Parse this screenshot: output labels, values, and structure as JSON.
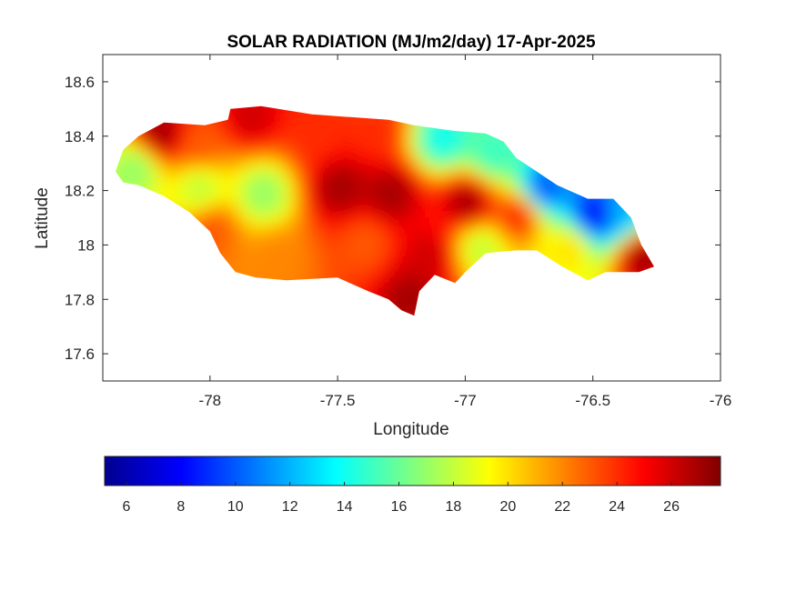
{
  "chart_data": {
    "type": "heatmap",
    "title": "SOLAR RADIATION (MJ/m2/day) 17-Apr-2025",
    "xlabel": "Longitude",
    "ylabel": "Latitude",
    "xlim": [
      -78.42,
      -76
    ],
    "ylim": [
      17.5,
      18.7
    ],
    "xticks": [
      -78,
      -77.5,
      -77,
      -76.5,
      -76
    ],
    "xtick_labels": [
      "-78",
      "-77.5",
      "-77",
      "-76.5",
      "-76"
    ],
    "yticks": [
      17.6,
      17.8,
      18,
      18.2,
      18.4,
      18.6
    ],
    "ytick_labels": [
      "17.6",
      "17.8",
      "18",
      "18.2",
      "18.4",
      "18.6"
    ],
    "grid": false,
    "colormap": "jet",
    "colorbar": {
      "orientation": "horizontal",
      "placement": "bottom",
      "range": [
        5.2,
        27.8
      ],
      "ticks": [
        6,
        8,
        10,
        12,
        14,
        16,
        18,
        20,
        22,
        24,
        26
      ],
      "tick_labels": [
        "6",
        "8",
        "10",
        "12",
        "14",
        "16",
        "18",
        "20",
        "22",
        "24",
        "26"
      ]
    },
    "region_outline": [
      [
        -78.37,
        18.27
      ],
      [
        -78.34,
        18.35
      ],
      [
        -78.28,
        18.4
      ],
      [
        -78.18,
        18.45
      ],
      [
        -78.02,
        18.44
      ],
      [
        -77.93,
        18.46
      ],
      [
        -77.92,
        18.5
      ],
      [
        -77.8,
        18.51
      ],
      [
        -77.6,
        18.48
      ],
      [
        -77.45,
        18.47
      ],
      [
        -77.3,
        18.46
      ],
      [
        -77.2,
        18.44
      ],
      [
        -77.05,
        18.42
      ],
      [
        -76.92,
        18.41
      ],
      [
        -76.85,
        18.38
      ],
      [
        -76.8,
        18.32
      ],
      [
        -76.72,
        18.27
      ],
      [
        -76.64,
        18.22
      ],
      [
        -76.52,
        18.17
      ],
      [
        -76.42,
        18.17
      ],
      [
        -76.35,
        18.1
      ],
      [
        -76.31,
        18.0
      ],
      [
        -76.26,
        17.92
      ],
      [
        -76.32,
        17.9
      ],
      [
        -76.45,
        17.9
      ],
      [
        -76.52,
        17.87
      ],
      [
        -76.62,
        17.92
      ],
      [
        -76.72,
        17.98
      ],
      [
        -76.8,
        17.98
      ],
      [
        -76.92,
        17.97
      ],
      [
        -77.0,
        17.9
      ],
      [
        -77.04,
        17.86
      ],
      [
        -77.12,
        17.89
      ],
      [
        -77.18,
        17.83
      ],
      [
        -77.2,
        17.74
      ],
      [
        -77.25,
        17.76
      ],
      [
        -77.3,
        17.8
      ],
      [
        -77.38,
        17.83
      ],
      [
        -77.5,
        17.88
      ],
      [
        -77.7,
        17.87
      ],
      [
        -77.82,
        17.88
      ],
      [
        -77.9,
        17.9
      ],
      [
        -77.96,
        17.97
      ],
      [
        -78.0,
        18.05
      ],
      [
        -78.08,
        18.12
      ],
      [
        -78.18,
        18.18
      ],
      [
        -78.28,
        18.22
      ],
      [
        -78.34,
        18.23
      ]
    ],
    "field_samples": [
      {
        "lon": -78.2,
        "lat": 18.4,
        "value": 27
      },
      {
        "lon": -78.05,
        "lat": 18.36,
        "value": 23
      },
      {
        "lon": -77.85,
        "lat": 18.46,
        "value": 26
      },
      {
        "lon": -77.6,
        "lat": 18.4,
        "value": 24
      },
      {
        "lon": -77.35,
        "lat": 18.42,
        "value": 24
      },
      {
        "lon": -77.1,
        "lat": 18.38,
        "value": 14
      },
      {
        "lon": -76.9,
        "lat": 18.33,
        "value": 15
      },
      {
        "lon": -76.7,
        "lat": 18.2,
        "value": 10
      },
      {
        "lon": -76.5,
        "lat": 18.1,
        "value": 8
      },
      {
        "lon": -76.4,
        "lat": 18.1,
        "value": 12
      },
      {
        "lon": -76.32,
        "lat": 17.95,
        "value": 27
      },
      {
        "lon": -78.3,
        "lat": 18.27,
        "value": 17
      },
      {
        "lon": -78.05,
        "lat": 18.2,
        "value": 18
      },
      {
        "lon": -77.8,
        "lat": 18.18,
        "value": 17
      },
      {
        "lon": -77.5,
        "lat": 18.2,
        "value": 27
      },
      {
        "lon": -77.3,
        "lat": 18.18,
        "value": 27
      },
      {
        "lon": -77.0,
        "lat": 18.15,
        "value": 27
      },
      {
        "lon": -76.8,
        "lat": 18.1,
        "value": 24
      },
      {
        "lon": -76.6,
        "lat": 17.98,
        "value": 20
      },
      {
        "lon": -78.0,
        "lat": 18.05,
        "value": 23
      },
      {
        "lon": -77.75,
        "lat": 17.95,
        "value": 22
      },
      {
        "lon": -77.4,
        "lat": 18.0,
        "value": 23
      },
      {
        "lon": -77.15,
        "lat": 17.95,
        "value": 26
      },
      {
        "lon": -76.95,
        "lat": 17.98,
        "value": 18
      },
      {
        "lon": -77.22,
        "lat": 17.8,
        "value": 27
      }
    ]
  }
}
